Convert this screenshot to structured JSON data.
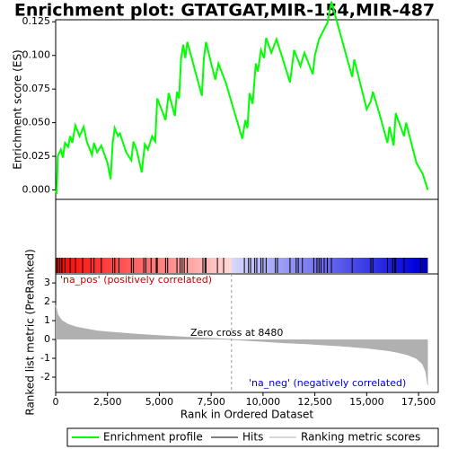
{
  "chart_data": {
    "type": "line",
    "title": "Enrichment plot: GTATGAT,MIR-154,MIR-487",
    "ylabel": "Enrichment score (ES)",
    "xlabel": "Rank in Ordered Dataset",
    "xlim": [
      0,
      18450
    ],
    "xticks": [
      0,
      {
        "value": 2500,
        "label": "2,500"
      },
      {
        "value": 5000,
        "label": "5,000"
      },
      {
        "value": 7500,
        "label": "7,500"
      },
      {
        "value": 10000,
        "label": "10,000"
      },
      {
        "value": 12500,
        "label": "12,500"
      },
      {
        "value": 15000,
        "label": "15,000"
      },
      {
        "value": 17500,
        "label": "17,500"
      }
    ],
    "ylim": [
      -0.007,
      0.1265
    ],
    "yticks": [
      {
        "value": 0,
        "label": "0.000"
      },
      {
        "value": 0.025,
        "label": "0.025"
      },
      {
        "value": 0.05,
        "label": "0.050"
      },
      {
        "value": 0.075,
        "label": "0.075"
      },
      {
        "value": 0.1,
        "label": "0.100"
      },
      {
        "value": 0.125,
        "label": "0.125"
      }
    ],
    "series": [
      {
        "name": "Enrichment profile",
        "color": "#00ff00",
        "x": [
          0,
          50,
          100,
          250,
          350,
          450,
          600,
          700,
          800,
          950,
          1150,
          1350,
          1500,
          1750,
          1850,
          2000,
          2200,
          2500,
          2650,
          2750,
          2850,
          3000,
          3100,
          3400,
          3650,
          3750,
          3900,
          4150,
          4300,
          4450,
          4650,
          4800,
          4900,
          5100,
          5300,
          5450,
          5750,
          5850,
          5950,
          6050,
          6150,
          6250,
          6350,
          6700,
          7050,
          7150,
          7250,
          7500,
          7700,
          7850,
          8200,
          9000,
          9150,
          9250,
          9350,
          9500,
          9650,
          9750,
          9900,
          10050,
          10150,
          10400,
          10650,
          11000,
          11300,
          11500,
          11800,
          12000,
          12400,
          12500,
          12700,
          12900,
          13100,
          13300,
          13800,
          14300,
          14400,
          15000,
          15200,
          15300,
          15700,
          16000,
          16100,
          16300,
          16400,
          16800,
          16900,
          17400,
          17700,
          17950
        ],
        "values": [
          0,
          -0.003,
          0.025,
          0.03,
          0.024,
          0.035,
          0.032,
          0.04,
          0.035,
          0.048,
          0.04,
          0.047,
          0.036,
          0.026,
          0.035,
          0.028,
          0.033,
          0.02,
          0.008,
          0.035,
          0.046,
          0.04,
          0.042,
          0.028,
          0.022,
          0.036,
          0.03,
          0.013,
          0.034,
          0.03,
          0.04,
          0.036,
          0.068,
          0.06,
          0.052,
          0.072,
          0.055,
          0.073,
          0.068,
          0.098,
          0.108,
          0.098,
          0.11,
          0.09,
          0.07,
          0.098,
          0.11,
          0.094,
          0.082,
          0.094,
          0.08,
          0.038,
          0.052,
          0.046,
          0.072,
          0.064,
          0.094,
          0.088,
          0.104,
          0.098,
          0.113,
          0.102,
          0.112,
          0.095,
          0.08,
          0.104,
          0.092,
          0.102,
          0.086,
          0.1,
          0.112,
          0.118,
          0.124,
          0.14,
          0.112,
          0.084,
          0.097,
          0.06,
          0.066,
          0.073,
          0.052,
          0.035,
          0.047,
          0.033,
          0.057,
          0.04,
          0.05,
          0.02,
          0.012,
          0
        ]
      }
    ],
    "hits": {
      "name": "Hits",
      "color": "#000000",
      "x": [
        30,
        100,
        200,
        300,
        450,
        700,
        950,
        1300,
        1700,
        1850,
        2200,
        2750,
        2850,
        3050,
        3650,
        3750,
        4250,
        4350,
        4600,
        4850,
        4900,
        5300,
        5400,
        5850,
        6000,
        6100,
        6200,
        6350,
        7100,
        7200,
        7250,
        7800,
        8100,
        9100,
        9300,
        9400,
        9600,
        9700,
        9900,
        10000,
        10150,
        10600,
        10700,
        11300,
        11600,
        11700,
        11900,
        12450,
        12600,
        12700,
        12800,
        12950,
        13100,
        13300,
        14300,
        15200,
        15300,
        16000,
        16250,
        16350,
        16400,
        16800,
        17600
      ]
    },
    "metric": {
      "name": "Ranking metric scores",
      "color": "#b0b0b0",
      "ylabel": "Ranked list metric (PreRanked)",
      "ylim": [
        -2.81,
        3.48
      ],
      "yticks": [
        -2,
        -1,
        0,
        1,
        2,
        3
      ],
      "x": [
        0,
        100,
        300,
        600,
        1000,
        2000,
        3000,
        4000,
        5000,
        6000,
        7000,
        8480,
        10000,
        11000,
        12000,
        13000,
        14000,
        15000,
        16000,
        16500,
        17000,
        17400,
        17700,
        17850,
        17950
      ],
      "values": [
        1.8,
        1.3,
        1.0,
        0.8,
        0.65,
        0.45,
        0.35,
        0.27,
        0.2,
        0.14,
        0.08,
        0,
        -0.1,
        -0.17,
        -0.22,
        -0.29,
        -0.36,
        -0.45,
        -0.58,
        -0.68,
        -0.82,
        -1.0,
        -1.3,
        -1.7,
        -2.4
      ]
    },
    "zero_cross": 8480,
    "annotations": {
      "pos": "'na_pos' (positively correlated)",
      "zero": "Zero cross at 8480",
      "neg": "'na_neg' (negatively correlated)"
    }
  }
}
